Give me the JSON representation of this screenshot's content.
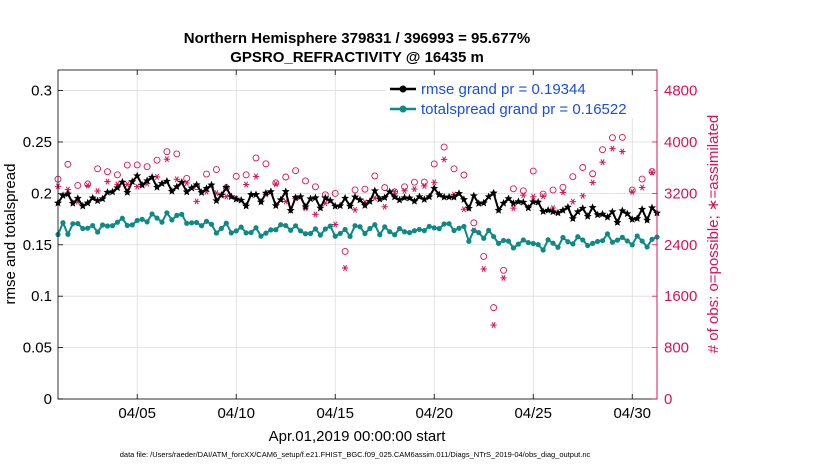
{
  "chart_data": {
    "type": "line",
    "title": [
      "Northern Hemisphere 379831 / 396993 = 95.677%",
      "GPSRO_REFRACTIVITY @ 16435 m"
    ],
    "xlabel": "Apr.01,2019 00:00:00 start",
    "ylabel_left": "rmse and totalspread",
    "ylabel_right": "# of obs: o=possible; ∗=assimilated",
    "footer": "data file: /Users/raeder/DAI/ATM_forcXX/CAM6_setup/f.e21.FHIST_BGC.f09_025.CAM6assim.011/Diags_NTrS_2019-04/obs_diag_output.nc",
    "x_range_days": [
      1.0,
      31.25
    ],
    "ylim_left": [
      0,
      0.32
    ],
    "ylim_right": [
      0,
      5120
    ],
    "x_ticks": [
      {
        "day": 5,
        "label": "04/05"
      },
      {
        "day": 10,
        "label": "04/10"
      },
      {
        "day": 15,
        "label": "04/15"
      },
      {
        "day": 20,
        "label": "04/20"
      },
      {
        "day": 25,
        "label": "04/25"
      },
      {
        "day": 30,
        "label": "04/30"
      }
    ],
    "y_ticks_left": [
      {
        "v": 0,
        "label": "0"
      },
      {
        "v": 0.05,
        "label": "0.05"
      },
      {
        "v": 0.1,
        "label": "0.1"
      },
      {
        "v": 0.15,
        "label": "0.15"
      },
      {
        "v": 0.2,
        "label": "0.2"
      },
      {
        "v": 0.25,
        "label": "0.25"
      },
      {
        "v": 0.3,
        "label": "0.3"
      }
    ],
    "y_ticks_right": [
      {
        "v": 0,
        "label": "0"
      },
      {
        "v": 800,
        "label": "800"
      },
      {
        "v": 1600,
        "label": "1600"
      },
      {
        "v": 2400,
        "label": "2400"
      },
      {
        "v": 3200,
        "label": "3200"
      },
      {
        "v": 4000,
        "label": "4000"
      },
      {
        "v": 4800,
        "label": "4800"
      }
    ],
    "grid": true,
    "legend_position": "top-right",
    "sample_interval_hours": 6,
    "colors": {
      "rmse": "#000000",
      "totalspread": "#0e8a86",
      "obs": "#d4145a",
      "legend_text": "#1a4fd6",
      "grid": "#dcdcdc"
    },
    "series": [
      {
        "name": "rmse grand pr = 0.19344",
        "axis": "left",
        "marker": "*",
        "anchors_day": [
          1.0,
          1.5,
          2,
          2.5,
          3,
          3.5,
          4,
          4.5,
          5,
          5.5,
          6,
          6.5,
          7,
          7.5,
          8,
          8.5,
          9,
          9.5,
          10,
          10.5,
          11,
          11.5,
          12,
          12.5,
          13,
          13.5,
          14,
          14.5,
          15,
          15.5,
          16,
          16.5,
          17,
          17.5,
          18,
          18.5,
          19,
          19.5,
          20,
          20.5,
          21,
          21.5,
          22,
          22.5,
          23,
          23.5,
          24,
          24.5,
          25,
          25.5,
          26,
          26.5,
          27,
          27.5,
          28,
          28.5,
          29,
          29.5,
          30,
          30.5,
          31.25
        ],
        "anchors_value": [
          0.19,
          0.198,
          0.192,
          0.196,
          0.198,
          0.2,
          0.202,
          0.206,
          0.208,
          0.21,
          0.212,
          0.208,
          0.205,
          0.204,
          0.202,
          0.2,
          0.198,
          0.197,
          0.195,
          0.194,
          0.193,
          0.194,
          0.196,
          0.195,
          0.19,
          0.19,
          0.192,
          0.19,
          0.188,
          0.19,
          0.196,
          0.192,
          0.195,
          0.196,
          0.197,
          0.195,
          0.196,
          0.2,
          0.2,
          0.198,
          0.196,
          0.195,
          0.194,
          0.192,
          0.195,
          0.19,
          0.19,
          0.188,
          0.187,
          0.186,
          0.185,
          0.184,
          0.183,
          0.182,
          0.18,
          0.18,
          0.178,
          0.177,
          0.176,
          0.178,
          0.18
        ],
        "noise": 0.008
      },
      {
        "name": "totalspread grand pr = 0.16522",
        "axis": "left",
        "marker": "o",
        "anchors_day": [
          1.0,
          1.5,
          2,
          2.5,
          3,
          3.5,
          4,
          4.5,
          5,
          5.5,
          6,
          6.5,
          7,
          7.5,
          8,
          8.5,
          9,
          9.5,
          10,
          10.5,
          11,
          11.5,
          12,
          12.5,
          13,
          13.5,
          14,
          14.5,
          15,
          15.5,
          16,
          16.5,
          17,
          17.5,
          18,
          18.5,
          19,
          19.5,
          20,
          20.5,
          21,
          21.5,
          22,
          22.5,
          23,
          23.5,
          24,
          24.5,
          25,
          25.5,
          26,
          26.5,
          27,
          27.5,
          28,
          28.5,
          29,
          29.5,
          30,
          30.5,
          31.25
        ],
        "anchors_value": [
          0.164,
          0.166,
          0.167,
          0.168,
          0.168,
          0.169,
          0.17,
          0.172,
          0.174,
          0.175,
          0.176,
          0.175,
          0.174,
          0.172,
          0.171,
          0.169,
          0.167,
          0.165,
          0.164,
          0.163,
          0.162,
          0.163,
          0.164,
          0.165,
          0.164,
          0.163,
          0.163,
          0.162,
          0.162,
          0.163,
          0.166,
          0.164,
          0.165,
          0.164,
          0.165,
          0.163,
          0.164,
          0.166,
          0.168,
          0.166,
          0.164,
          0.162,
          0.16,
          0.158,
          0.16,
          0.156,
          0.154,
          0.152,
          0.152,
          0.151,
          0.152,
          0.151,
          0.153,
          0.154,
          0.153,
          0.155,
          0.154,
          0.155,
          0.156,
          0.155,
          0.155
        ],
        "noise": 0.006
      },
      {
        "name": "possible",
        "axis": "right",
        "marker": "circle-open",
        "anchors_day": [
          1.0,
          2,
          3,
          4,
          5,
          6,
          6.5,
          7,
          8,
          9,
          10,
          11,
          12,
          13,
          14,
          15,
          15.5,
          16,
          17,
          18,
          19,
          20,
          20.5,
          21,
          21.5,
          22,
          22.5,
          23,
          23.5,
          24,
          25,
          26,
          27,
          28,
          28.5,
          29,
          29.5,
          30,
          31
        ],
        "anchors_value": [
          3600,
          3400,
          3500,
          3550,
          3550,
          3650,
          3800,
          3700,
          3350,
          3500,
          3400,
          3600,
          3500,
          3400,
          3250,
          3050,
          2150,
          3300,
          3350,
          3350,
          3400,
          3500,
          3900,
          3500,
          3350,
          2900,
          2300,
          1400,
          2000,
          3300,
          3400,
          3300,
          3400,
          3500,
          4000,
          4100,
          4150,
          3300,
          3600
        ],
        "noise": 180
      },
      {
        "name": "assimilated",
        "axis": "right",
        "marker": "asterisk",
        "anchors_day": [
          1.0,
          2,
          3,
          4,
          5,
          6,
          6.5,
          7,
          8,
          9,
          10,
          11,
          12,
          13,
          14,
          15,
          15.5,
          16,
          17,
          18,
          19,
          20,
          20.5,
          21,
          21.5,
          22,
          22.5,
          23,
          23.5,
          24,
          25,
          26,
          27,
          28,
          28.5,
          29,
          29.5,
          30,
          31
        ],
        "anchors_value": [
          3300,
          3150,
          3250,
          3300,
          3300,
          3400,
          3600,
          3450,
          3150,
          3250,
          3150,
          3350,
          3250,
          3150,
          3000,
          2800,
          2000,
          3050,
          3100,
          3100,
          3150,
          3250,
          3650,
          3250,
          3100,
          2700,
          2150,
          1300,
          1850,
          3050,
          3150,
          3050,
          3150,
          3250,
          3800,
          3900,
          4000,
          3100,
          3400
        ],
        "noise": 150
      }
    ]
  }
}
